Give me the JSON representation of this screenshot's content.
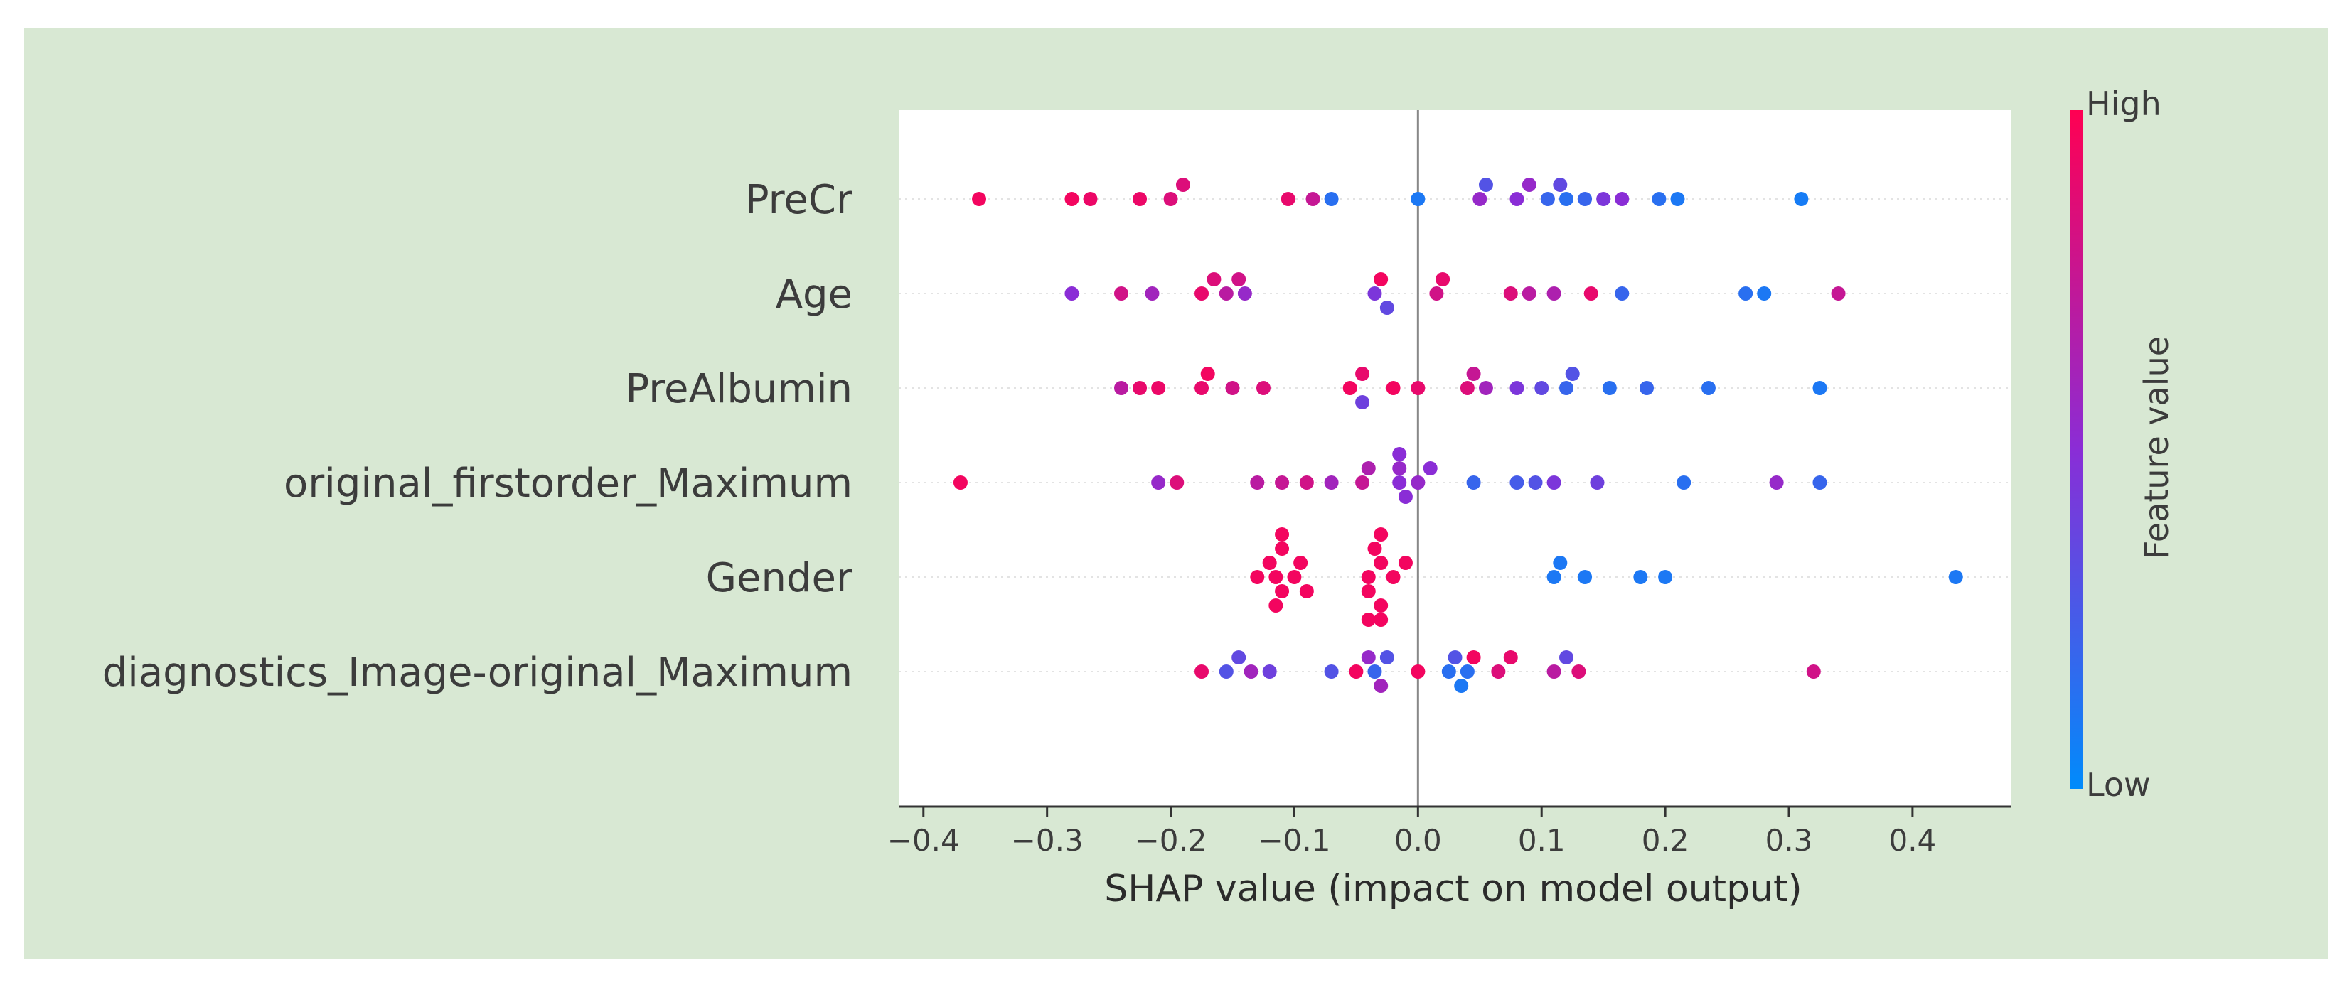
{
  "chart_data": {
    "type": "scatter",
    "subtype": "shap-beeswarm",
    "title": "",
    "xlabel": "SHAP value (impact on model output)",
    "ylabel": "",
    "xlim": [
      -0.42,
      0.48
    ],
    "xticks": [
      -0.4,
      -0.3,
      -0.2,
      -0.1,
      0.0,
      0.1,
      0.2,
      0.3,
      0.4
    ],
    "xtick_labels": [
      "−0.4",
      "−0.3",
      "−0.2",
      "−0.1",
      "0.0",
      "0.1",
      "0.2",
      "0.3",
      "0.4"
    ],
    "grid": false,
    "colorbar": {
      "title": "Feature value",
      "high_label": "High",
      "low_label": "Low",
      "high_color": "#ff0052",
      "low_color": "#008bfb",
      "placement": "right"
    },
    "features": [
      {
        "name": "PreCr",
        "points": [
          {
            "x": -0.355,
            "v": 0.95
          },
          {
            "x": -0.28,
            "v": 0.95
          },
          {
            "x": -0.265,
            "v": 0.92
          },
          {
            "x": -0.225,
            "v": 0.92
          },
          {
            "x": -0.2,
            "v": 0.85
          },
          {
            "x": -0.19,
            "v": 0.85
          },
          {
            "x": -0.105,
            "v": 0.9
          },
          {
            "x": -0.085,
            "v": 0.75
          },
          {
            "x": -0.07,
            "v": 0.15
          },
          {
            "x": 0.0,
            "v": 0.1
          },
          {
            "x": 0.05,
            "v": 0.55
          },
          {
            "x": 0.055,
            "v": 0.3
          },
          {
            "x": 0.08,
            "v": 0.5
          },
          {
            "x": 0.09,
            "v": 0.55
          },
          {
            "x": 0.105,
            "v": 0.2
          },
          {
            "x": 0.115,
            "v": 0.35
          },
          {
            "x": 0.12,
            "v": 0.15
          },
          {
            "x": 0.135,
            "v": 0.2
          },
          {
            "x": 0.15,
            "v": 0.45
          },
          {
            "x": 0.165,
            "v": 0.5
          },
          {
            "x": 0.195,
            "v": 0.15
          },
          {
            "x": 0.21,
            "v": 0.1
          },
          {
            "x": 0.31,
            "v": 0.08
          }
        ]
      },
      {
        "name": "Age",
        "points": [
          {
            "x": -0.28,
            "v": 0.5
          },
          {
            "x": -0.24,
            "v": 0.8
          },
          {
            "x": -0.215,
            "v": 0.6
          },
          {
            "x": -0.175,
            "v": 0.9
          },
          {
            "x": -0.165,
            "v": 0.85
          },
          {
            "x": -0.155,
            "v": 0.7
          },
          {
            "x": -0.145,
            "v": 0.8
          },
          {
            "x": -0.14,
            "v": 0.55
          },
          {
            "x": -0.035,
            "v": 0.45
          },
          {
            "x": -0.03,
            "v": 0.95
          },
          {
            "x": -0.025,
            "v": 0.35
          },
          {
            "x": 0.015,
            "v": 0.8
          },
          {
            "x": 0.02,
            "v": 0.9
          },
          {
            "x": 0.075,
            "v": 0.85
          },
          {
            "x": 0.09,
            "v": 0.7
          },
          {
            "x": 0.11,
            "v": 0.65
          },
          {
            "x": 0.14,
            "v": 0.9
          },
          {
            "x": 0.165,
            "v": 0.2
          },
          {
            "x": 0.265,
            "v": 0.15
          },
          {
            "x": 0.28,
            "v": 0.1
          },
          {
            "x": 0.34,
            "v": 0.75
          }
        ]
      },
      {
        "name": "PreAlbumin",
        "points": [
          {
            "x": -0.24,
            "v": 0.7
          },
          {
            "x": -0.225,
            "v": 0.9
          },
          {
            "x": -0.21,
            "v": 0.92
          },
          {
            "x": -0.175,
            "v": 0.9
          },
          {
            "x": -0.17,
            "v": 0.95
          },
          {
            "x": -0.15,
            "v": 0.8
          },
          {
            "x": -0.125,
            "v": 0.85
          },
          {
            "x": -0.055,
            "v": 0.95
          },
          {
            "x": -0.045,
            "v": 0.9
          },
          {
            "x": -0.045,
            "v": 0.4
          },
          {
            "x": -0.02,
            "v": 0.95
          },
          {
            "x": 0.0,
            "v": 0.9
          },
          {
            "x": 0.04,
            "v": 0.85
          },
          {
            "x": 0.045,
            "v": 0.75
          },
          {
            "x": 0.055,
            "v": 0.6
          },
          {
            "x": 0.08,
            "v": 0.45
          },
          {
            "x": 0.1,
            "v": 0.35
          },
          {
            "x": 0.12,
            "v": 0.2
          },
          {
            "x": 0.125,
            "v": 0.3
          },
          {
            "x": 0.155,
            "v": 0.15
          },
          {
            "x": 0.185,
            "v": 0.2
          },
          {
            "x": 0.235,
            "v": 0.15
          },
          {
            "x": 0.325,
            "v": 0.1
          }
        ]
      },
      {
        "name": "original_firstorder_Maximum",
        "points": [
          {
            "x": -0.37,
            "v": 0.95
          },
          {
            "x": -0.21,
            "v": 0.55
          },
          {
            "x": -0.195,
            "v": 0.85
          },
          {
            "x": -0.13,
            "v": 0.7
          },
          {
            "x": -0.11,
            "v": 0.75
          },
          {
            "x": -0.09,
            "v": 0.8
          },
          {
            "x": -0.07,
            "v": 0.6
          },
          {
            "x": -0.045,
            "v": 0.75
          },
          {
            "x": -0.04,
            "v": 0.65
          },
          {
            "x": -0.015,
            "v": 0.5
          },
          {
            "x": -0.015,
            "v": 0.55
          },
          {
            "x": -0.01,
            "v": 0.5
          },
          {
            "x": -0.015,
            "v": 0.5
          },
          {
            "x": 0.0,
            "v": 0.55
          },
          {
            "x": 0.01,
            "v": 0.5
          },
          {
            "x": 0.045,
            "v": 0.2
          },
          {
            "x": 0.08,
            "v": 0.25
          },
          {
            "x": 0.095,
            "v": 0.3
          },
          {
            "x": 0.11,
            "v": 0.45
          },
          {
            "x": 0.145,
            "v": 0.4
          },
          {
            "x": 0.215,
            "v": 0.15
          },
          {
            "x": 0.29,
            "v": 0.55
          },
          {
            "x": 0.325,
            "v": 0.2
          }
        ]
      },
      {
        "name": "Gender",
        "points": [
          {
            "x": -0.13,
            "v": 0.95
          },
          {
            "x": -0.12,
            "v": 0.95
          },
          {
            "x": -0.115,
            "v": 0.95
          },
          {
            "x": -0.11,
            "v": 0.95
          },
          {
            "x": -0.1,
            "v": 0.95
          },
          {
            "x": -0.095,
            "v": 0.95
          },
          {
            "x": -0.09,
            "v": 0.95
          },
          {
            "x": -0.11,
            "v": 0.95
          },
          {
            "x": -0.115,
            "v": 0.95
          },
          {
            "x": -0.11,
            "v": 0.95
          },
          {
            "x": -0.04,
            "v": 0.95
          },
          {
            "x": -0.03,
            "v": 0.95
          },
          {
            "x": -0.04,
            "v": 0.95
          },
          {
            "x": -0.035,
            "v": 0.95
          },
          {
            "x": -0.03,
            "v": 0.95
          },
          {
            "x": -0.02,
            "v": 0.95
          },
          {
            "x": -0.03,
            "v": 0.95
          },
          {
            "x": -0.04,
            "v": 0.95
          },
          {
            "x": -0.03,
            "v": 0.95
          },
          {
            "x": -0.01,
            "v": 0.95
          },
          {
            "x": 0.11,
            "v": 0.1
          },
          {
            "x": 0.115,
            "v": 0.1
          },
          {
            "x": 0.135,
            "v": 0.1
          },
          {
            "x": 0.18,
            "v": 0.1
          },
          {
            "x": 0.2,
            "v": 0.1
          },
          {
            "x": 0.435,
            "v": 0.1
          }
        ]
      },
      {
        "name": "diagnostics_Image-original_Maximum",
        "points": [
          {
            "x": -0.175,
            "v": 0.9
          },
          {
            "x": -0.155,
            "v": 0.3
          },
          {
            "x": -0.145,
            "v": 0.35
          },
          {
            "x": -0.135,
            "v": 0.6
          },
          {
            "x": -0.12,
            "v": 0.4
          },
          {
            "x": -0.07,
            "v": 0.3
          },
          {
            "x": -0.05,
            "v": 0.95
          },
          {
            "x": -0.04,
            "v": 0.55
          },
          {
            "x": -0.035,
            "v": 0.2
          },
          {
            "x": -0.03,
            "v": 0.6
          },
          {
            "x": -0.025,
            "v": 0.3
          },
          {
            "x": 0.0,
            "v": 0.95
          },
          {
            "x": 0.025,
            "v": 0.15
          },
          {
            "x": 0.03,
            "v": 0.3
          },
          {
            "x": 0.035,
            "v": 0.1
          },
          {
            "x": 0.04,
            "v": 0.15
          },
          {
            "x": 0.045,
            "v": 0.95
          },
          {
            "x": 0.065,
            "v": 0.85
          },
          {
            "x": 0.075,
            "v": 0.9
          },
          {
            "x": 0.11,
            "v": 0.7
          },
          {
            "x": 0.12,
            "v": 0.35
          },
          {
            "x": 0.13,
            "v": 0.85
          },
          {
            "x": 0.32,
            "v": 0.8
          }
        ]
      }
    ]
  }
}
